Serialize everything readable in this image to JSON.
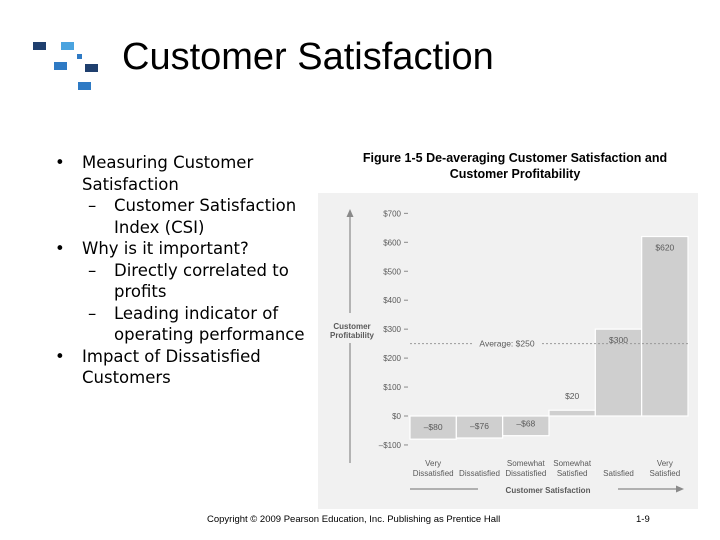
{
  "slide": {
    "title": "Customer Satisfaction",
    "bullets": [
      {
        "text": "Measuring Customer Satisfaction",
        "subs": [
          "Customer Satisfaction Index (CSI)"
        ]
      },
      {
        "text": "Why is it important?",
        "subs": [
          "Directly correlated to profits",
          "Leading indicator of operating performance"
        ]
      },
      {
        "text": "Impact of Dissatisfied Customers",
        "subs": []
      }
    ],
    "sub_marker": "–",
    "figure_caption": "Figure 1-5 De-averaging Customer Satisfaction and Customer Profitability",
    "footer": "Copyright © 2009 Pearson Education, Inc.  Publishing as Prentice Hall",
    "slide_number": "1-9"
  },
  "chart_data": {
    "type": "bar",
    "ylabel": "Customer Profitability",
    "xlabel": "Customer Satisfaction",
    "ylim": [
      -100,
      700
    ],
    "yticks": [
      -100,
      0,
      100,
      200,
      300,
      400,
      500,
      600,
      700
    ],
    "ytick_labels": [
      "–$100",
      "$0",
      "$100",
      "$200",
      "$300",
      "$400",
      "$500",
      "$600",
      "$700"
    ],
    "categories": [
      "Very Dissatisfied",
      "Dissatisfied",
      "Somewhat Dissatisfied",
      "Somewhat Satisfied",
      "Satisfied",
      "Very Satisfied"
    ],
    "category_lines": [
      [
        "Very",
        "Dissatisfied"
      ],
      [
        "",
        "Dissatisfied"
      ],
      [
        "Somewhat",
        "Dissatisfied"
      ],
      [
        "Somewhat",
        "Satisfied"
      ],
      [
        "",
        "Satisfied"
      ],
      [
        "Very",
        "Satisfied"
      ]
    ],
    "values": [
      -80,
      -76,
      -68,
      20,
      300,
      620
    ],
    "data_labels": [
      "–$80",
      "–$76",
      "–$68",
      "$20",
      "$300",
      "$620"
    ],
    "average": 250,
    "average_label": "Average: $250",
    "colors": {
      "background": "#f1f1f1",
      "bar": "#cfcfcf",
      "bar_edge": "#ffffff",
      "text": "#5a5a5a",
      "axis": "#8a8a8a",
      "avg_line": "#9a9a9a"
    }
  },
  "logo_colors": {
    "navy": "#1f3f6e",
    "blue": "#2e7ac4",
    "cyan": "#4aa3df"
  }
}
